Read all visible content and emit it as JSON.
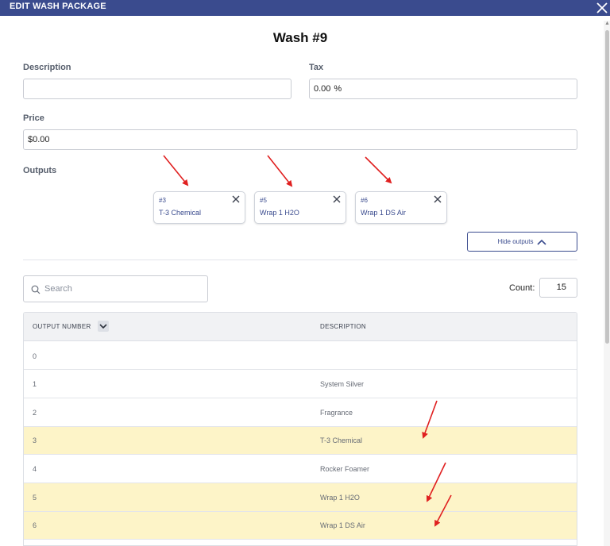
{
  "modal": {
    "title": "EDIT WASH PACKAGE",
    "close_icon": "close-icon",
    "heading": "Wash #9"
  },
  "form": {
    "description_label": "Description",
    "description_value": "",
    "tax_label": "Tax",
    "tax_value": "0.00",
    "tax_unit": "%",
    "price_label": "Price",
    "price_value": "$0.00",
    "outputs_label": "Outputs"
  },
  "selected_outputs": [
    {
      "number": "#3",
      "name": "T-3 Chemical"
    },
    {
      "number": "#5",
      "name": "Wrap 1 H2O"
    },
    {
      "number": "#6",
      "name": "Wrap 1 DS Air"
    }
  ],
  "hide_outputs_label": "Hide outputs",
  "search": {
    "placeholder": "Search",
    "value": ""
  },
  "count": {
    "label": "Count:",
    "value": "15"
  },
  "table": {
    "columns": [
      "OUTPUT NUMBER",
      "DESCRIPTION"
    ],
    "rows": [
      {
        "number": "0",
        "description": "",
        "selected": false
      },
      {
        "number": "1",
        "description": "System Silver",
        "selected": false
      },
      {
        "number": "2",
        "description": "Fragrance",
        "selected": false
      },
      {
        "number": "3",
        "description": "T-3 Chemical",
        "selected": true
      },
      {
        "number": "4",
        "description": "Rocker Foamer",
        "selected": false
      },
      {
        "number": "5",
        "description": "Wrap 1 H2O",
        "selected": true
      },
      {
        "number": "6",
        "description": "Wrap 1 DS Air",
        "selected": true
      }
    ]
  },
  "colors": {
    "header_bg": "#3a4b8e",
    "accent": "#3a4b8e",
    "selected_row_bg": "#fdf4c8",
    "annotation_arrow": "#e02020"
  }
}
